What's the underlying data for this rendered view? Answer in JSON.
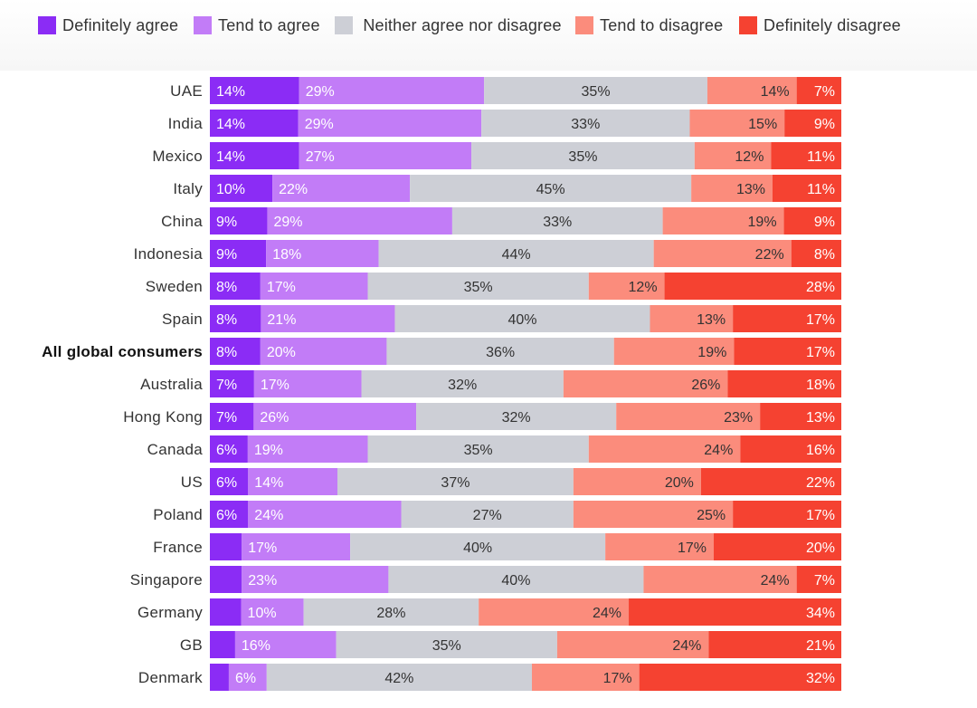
{
  "legend": [
    {
      "label": "Definitely agree",
      "color": "#8b2cf5"
    },
    {
      "label": "Tend to agree",
      "color": "#c27cf7"
    },
    {
      "label": "Neither agree nor disagree",
      "color": "#cdcfd6"
    },
    {
      "label": "Tend to disagree",
      "color": "#fb8c7c"
    },
    {
      "label": "Definitely disagree",
      "color": "#f54231"
    }
  ],
  "chart_data": {
    "type": "bar",
    "orientation": "horizontal",
    "stacked": true,
    "normalized": true,
    "title": "",
    "xlabel": "",
    "ylabel": "",
    "categories": [
      "UAE",
      "India",
      "Mexico",
      "Italy",
      "China",
      "Indonesia",
      "Sweden",
      "Spain",
      "All global consumers",
      "Australia",
      "Hong Kong",
      "Canada",
      "US",
      "Poland",
      "France",
      "Singapore",
      "Germany",
      "GB",
      "Denmark"
    ],
    "highlight": "All global consumers",
    "series": [
      {
        "name": "Definitely agree",
        "color": "#8b2cf5",
        "values": [
          14,
          14,
          14,
          10,
          9,
          9,
          8,
          8,
          8,
          7,
          7,
          6,
          6,
          6,
          5,
          5,
          5,
          4,
          3
        ],
        "labels": [
          "14%",
          "14%",
          "14%",
          "10%",
          "9%",
          "9%",
          "8%",
          "8%",
          "8%",
          "7%",
          "7%",
          "6%",
          "6%",
          "6%",
          "",
          "",
          "",
          "",
          ""
        ]
      },
      {
        "name": "Tend to agree",
        "color": "#c27cf7",
        "values": [
          29,
          29,
          27,
          22,
          29,
          18,
          17,
          21,
          20,
          17,
          26,
          19,
          14,
          24,
          17,
          23,
          10,
          16,
          6
        ],
        "labels": [
          "29%",
          "29%",
          "27%",
          "22%",
          "29%",
          "18%",
          "17%",
          "21%",
          "20%",
          "17%",
          "26%",
          "19%",
          "14%",
          "24%",
          "17%",
          "23%",
          "10%",
          "16%",
          "6%"
        ]
      },
      {
        "name": "Neither agree nor disagree",
        "color": "#cdcfd6",
        "values": [
          35,
          33,
          35,
          45,
          33,
          44,
          35,
          40,
          36,
          32,
          32,
          35,
          37,
          27,
          40,
          40,
          28,
          35,
          42
        ],
        "labels": [
          "35%",
          "33%",
          "35%",
          "45%",
          "33%",
          "44%",
          "35%",
          "40%",
          "36%",
          "32%",
          "32%",
          "35%",
          "37%",
          "27%",
          "40%",
          "40%",
          "28%",
          "35%",
          "42%"
        ]
      },
      {
        "name": "Tend to disagree",
        "color": "#fb8c7c",
        "values": [
          14,
          15,
          12,
          13,
          19,
          22,
          12,
          13,
          19,
          26,
          23,
          24,
          20,
          25,
          17,
          24,
          24,
          24,
          17
        ],
        "labels": [
          "14%",
          "15%",
          "12%",
          "13%",
          "19%",
          "22%",
          "12%",
          "13%",
          "19%",
          "26%",
          "23%",
          "24%",
          "20%",
          "25%",
          "17%",
          "24%",
          "24%",
          "24%",
          "17%"
        ]
      },
      {
        "name": "Definitely disagree",
        "color": "#f54231",
        "values": [
          7,
          9,
          11,
          11,
          9,
          8,
          28,
          17,
          17,
          18,
          13,
          16,
          22,
          17,
          20,
          7,
          34,
          21,
          32
        ],
        "labels": [
          "7%",
          "9%",
          "11%",
          "11%",
          "9%",
          "8%",
          "28%",
          "17%",
          "17%",
          "18%",
          "13%",
          "16%",
          "22%",
          "17%",
          "20%",
          "7%",
          "34%",
          "21%",
          "32%"
        ]
      }
    ]
  }
}
